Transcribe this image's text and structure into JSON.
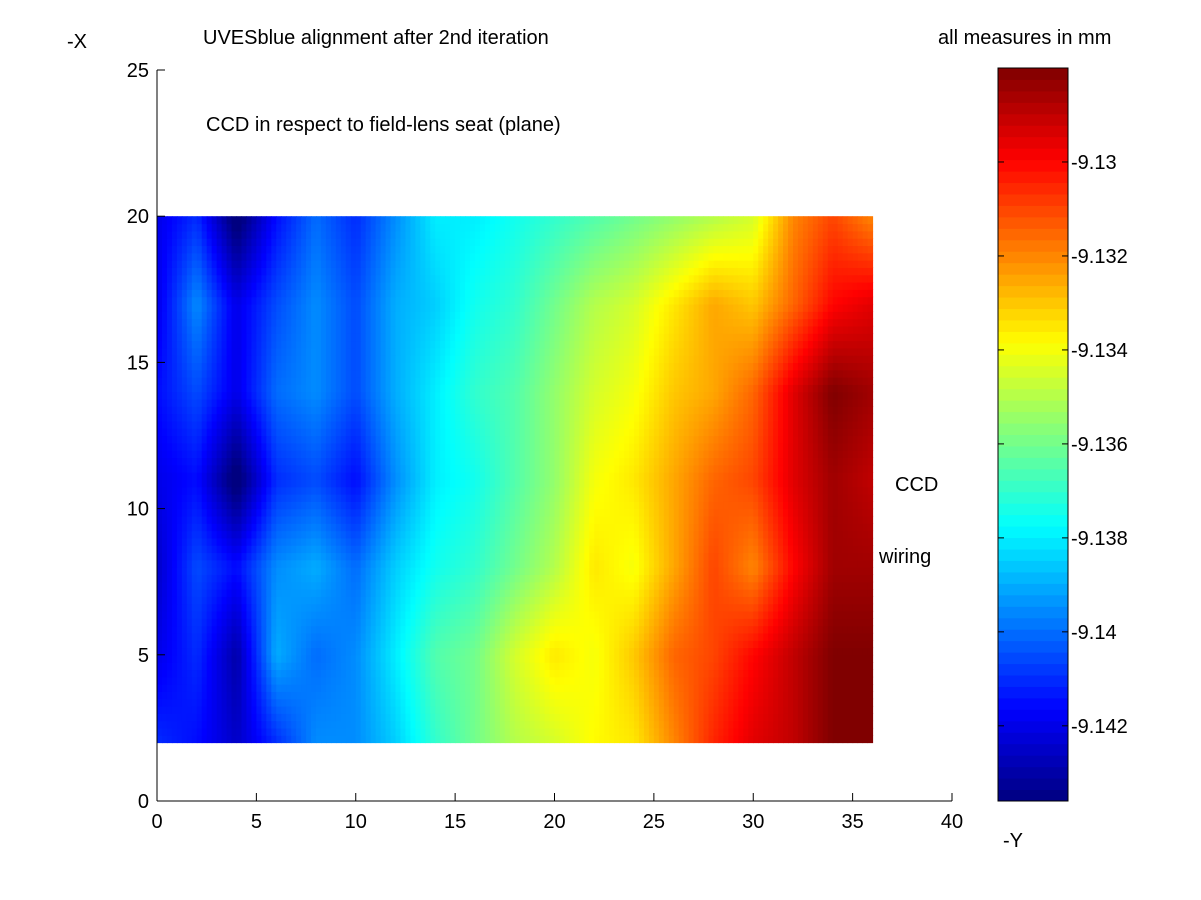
{
  "page": {
    "title": "UVESblue alignment after 2nd iteration",
    "units_note": "all measures in mm",
    "x_axis_letter": "-X",
    "y_axis_letter": "-Y",
    "annotation_subtitle": "CCD in respect to field-lens seat (plane)",
    "annotation_ccd": "CCD",
    "annotation_wiring": "wiring"
  },
  "chart_data": {
    "type": "heatmap",
    "title": "UVESblue alignment after 2nd iteration",
    "xlim": [
      0,
      40
    ],
    "ylim": [
      0,
      25
    ],
    "xticks": [
      0,
      5,
      10,
      15,
      20,
      25,
      30,
      35,
      40
    ],
    "yticks": [
      0,
      5,
      10,
      15,
      20,
      25
    ],
    "x": [
      0,
      2,
      4,
      6,
      8,
      10,
      12,
      14,
      16,
      18,
      20,
      22,
      24,
      26,
      28,
      30,
      32,
      34,
      36
    ],
    "y": [
      2,
      5,
      8,
      11,
      14,
      17,
      20
    ],
    "z": [
      [
        -9.141,
        -9.1415,
        -9.1425,
        -9.141,
        -9.1395,
        -9.1395,
        -9.1385,
        -9.137,
        -9.136,
        -9.135,
        -9.1345,
        -9.1338,
        -9.1335,
        -9.132,
        -9.1305,
        -9.1295,
        -9.129,
        -9.128,
        -9.128
      ],
      [
        -9.142,
        -9.141,
        -9.143,
        -9.139,
        -9.14,
        -9.1395,
        -9.138,
        -9.1365,
        -9.136,
        -9.1345,
        -9.1335,
        -9.134,
        -9.133,
        -9.1315,
        -9.131,
        -9.13,
        -9.129,
        -9.128,
        -9.128
      ],
      [
        -9.1425,
        -9.1405,
        -9.1415,
        -9.1395,
        -9.139,
        -9.14,
        -9.1385,
        -9.1375,
        -9.137,
        -9.136,
        -9.135,
        -9.1335,
        -9.134,
        -9.1325,
        -9.131,
        -9.132,
        -9.13,
        -9.1285,
        -9.1285
      ],
      [
        -9.142,
        -9.1415,
        -9.144,
        -9.141,
        -9.1405,
        -9.1415,
        -9.1395,
        -9.138,
        -9.1375,
        -9.1365,
        -9.1355,
        -9.134,
        -9.1335,
        -9.1325,
        -9.1315,
        -9.131,
        -9.1295,
        -9.1285,
        -9.129
      ],
      [
        -9.1415,
        -9.1405,
        -9.142,
        -9.14,
        -9.1395,
        -9.1405,
        -9.139,
        -9.138,
        -9.137,
        -9.1365,
        -9.1355,
        -9.1345,
        -9.134,
        -9.133,
        -9.1325,
        -9.1315,
        -9.1295,
        -9.128,
        -9.1285
      ],
      [
        -9.142,
        -9.1395,
        -9.142,
        -9.1405,
        -9.1395,
        -9.1405,
        -9.139,
        -9.1385,
        -9.1375,
        -9.137,
        -9.136,
        -9.135,
        -9.1345,
        -9.1335,
        -9.1325,
        -9.133,
        -9.1315,
        -9.13,
        -9.1295
      ],
      [
        -9.142,
        -9.141,
        -9.144,
        -9.1415,
        -9.14,
        -9.141,
        -9.1395,
        -9.138,
        -9.138,
        -9.1375,
        -9.137,
        -9.1365,
        -9.136,
        -9.1355,
        -9.135,
        -9.1345,
        -9.132,
        -9.131,
        -9.132
      ]
    ],
    "colorbar": {
      "clim": [
        -9.1436,
        -9.128
      ],
      "ticks": [
        -9.142,
        -9.14,
        -9.138,
        -9.136,
        -9.134,
        -9.132,
        -9.13
      ],
      "tick_labels": [
        "-9.142",
        "-9.14",
        "-9.138",
        "-9.136",
        "-9.134",
        "-9.132",
        "-9.13"
      ],
      "colormap": "jet",
      "levels": 64
    }
  }
}
